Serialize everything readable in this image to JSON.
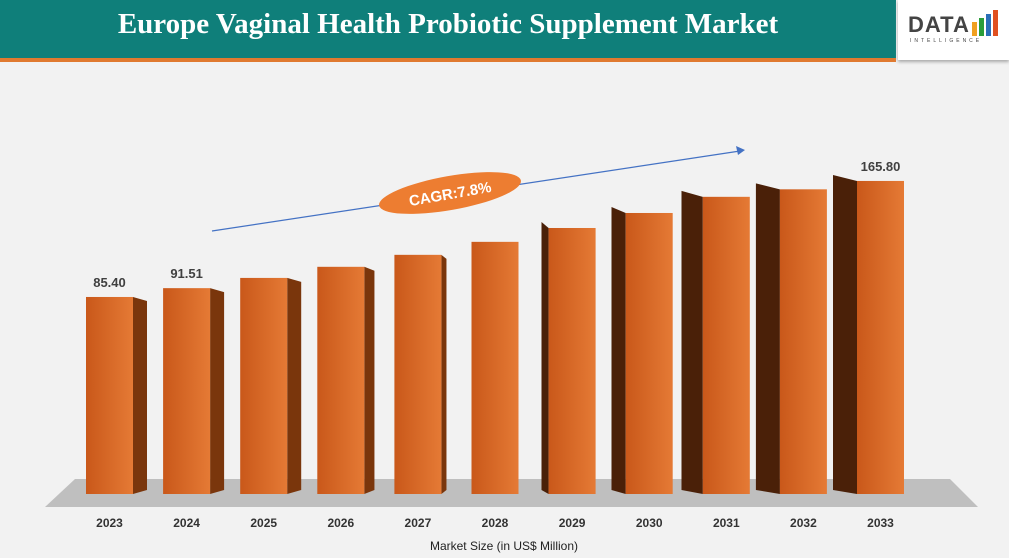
{
  "header": {
    "title": "Europe Vaginal Health Probiotic Supplement Market",
    "logo_text": "DATA",
    "logo_sub": "INTELLIGENCE"
  },
  "colors": {
    "header": "#0f7f7a",
    "bar": "#d0621a",
    "accent": "#e07a30",
    "trend_line": "#4472c4"
  },
  "chart_data": {
    "type": "bar",
    "title": "Europe Vaginal Health Probiotic Supplement Market",
    "xlabel": "Market Size (in US$ Million)",
    "categories": [
      "2023",
      "2024",
      "2025",
      "2026",
      "2027",
      "2028",
      "2029",
      "2030",
      "2031",
      "2032",
      "2033"
    ],
    "values": [
      85.4,
      91.51,
      98.6,
      106.3,
      114.6,
      123.6,
      133.2,
      143.6,
      154.8,
      160.0,
      165.8
    ],
    "data_labels": {
      "0": "85.40",
      "1": "91.51",
      "10": "165.80"
    },
    "annotation": "CAGR:7.8%",
    "grid": false,
    "style": "3d-column"
  }
}
